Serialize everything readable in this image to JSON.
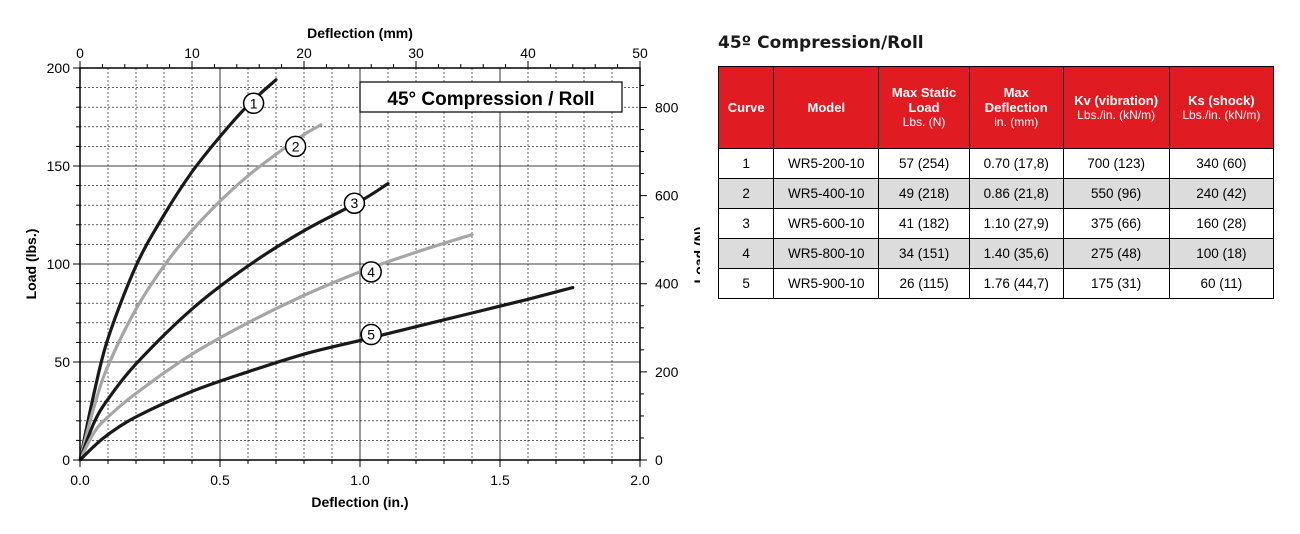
{
  "chart_data": {
    "type": "line",
    "title": "45° Compression / Roll",
    "xlabel": "Deflection (in.)",
    "ylabel": "Load (lbs.)",
    "x2label": "Deflection (mm)",
    "y2label": "Load (N)",
    "xlim": [
      0,
      2.0
    ],
    "ylim": [
      0,
      200
    ],
    "x2lim": [
      0,
      50
    ],
    "y2lim": [
      0,
      889.6
    ],
    "x_ticks": [
      "0.0",
      "0.5",
      "1.0",
      "1.5",
      "2.0"
    ],
    "y_ticks": [
      "0",
      "50",
      "100",
      "150",
      "200"
    ],
    "x2_ticks": [
      "0",
      "10",
      "20",
      "30",
      "40",
      "50"
    ],
    "y2_ticks": [
      "0",
      "200",
      "400",
      "600",
      "800"
    ],
    "grid": true,
    "series": [
      {
        "name": "1",
        "color": "#1a1a1a",
        "x": [
          0,
          0.05,
          0.1,
          0.2,
          0.3,
          0.4,
          0.5,
          0.6,
          0.7
        ],
        "y": [
          0,
          34,
          62,
          99,
          125,
          147,
          165,
          181,
          194
        ]
      },
      {
        "name": "2",
        "color": "#a6a6a6",
        "x": [
          0,
          0.05,
          0.1,
          0.2,
          0.3,
          0.4,
          0.5,
          0.6,
          0.7,
          0.8,
          0.86
        ],
        "y": [
          0,
          27,
          48,
          77,
          99,
          117,
          132,
          145,
          156,
          166,
          171
        ]
      },
      {
        "name": "3",
        "color": "#1a1a1a",
        "x": [
          0,
          0.05,
          0.1,
          0.2,
          0.4,
          0.6,
          0.8,
          1.0,
          1.1
        ],
        "y": [
          0,
          19,
          31,
          49,
          77,
          99,
          117,
          132,
          141
        ]
      },
      {
        "name": "4",
        "color": "#a6a6a6",
        "x": [
          0,
          0.05,
          0.1,
          0.2,
          0.4,
          0.6,
          0.8,
          1.0,
          1.2,
          1.4
        ],
        "y": [
          0,
          14,
          22,
          34,
          54,
          70,
          84,
          96,
          106,
          115
        ]
      },
      {
        "name": "5",
        "color": "#1a1a1a",
        "x": [
          0,
          0.05,
          0.1,
          0.2,
          0.4,
          0.6,
          0.8,
          1.0,
          1.2,
          1.4,
          1.6,
          1.76
        ],
        "y": [
          0,
          7,
          13,
          22,
          35,
          45,
          54,
          61,
          68,
          75,
          82,
          88
        ]
      }
    ],
    "curve_labels": [
      {
        "text": "1",
        "x": 0.62,
        "y": 182
      },
      {
        "text": "2",
        "x": 0.77,
        "y": 160
      },
      {
        "text": "3",
        "x": 0.98,
        "y": 131
      },
      {
        "text": "4",
        "x": 1.04,
        "y": 96
      },
      {
        "text": "5",
        "x": 1.04,
        "y": 64
      }
    ]
  },
  "table": {
    "title": "45º Compression/Roll",
    "headers": [
      {
        "label": "Curve",
        "unit": ""
      },
      {
        "label": "Model",
        "unit": ""
      },
      {
        "label": "Max Static Load",
        "unit": "Lbs. (N)"
      },
      {
        "label": "Max Deflection",
        "unit": "in. (mm)"
      },
      {
        "label": "Kv (vibration)",
        "unit": "Lbs./in. (kN/m)"
      },
      {
        "label": "Ks (shock)",
        "unit": "Lbs./in. (kN/m)"
      }
    ],
    "rows": [
      [
        "1",
        "WR5-200-10",
        "57 (254)",
        "0.70 (17,8)",
        "700 (123)",
        "340 (60)"
      ],
      [
        "2",
        "WR5-400-10",
        "49 (218)",
        "0.86 (21,8)",
        "550 (96)",
        "240 (42)"
      ],
      [
        "3",
        "WR5-600-10",
        "41 (182)",
        "1.10 (27,9)",
        "375 (66)",
        "160 (28)"
      ],
      [
        "4",
        "WR5-800-10",
        "34 (151)",
        "1.40 (35,6)",
        "275 (48)",
        "100 (18)"
      ],
      [
        "5",
        "WR5-900-10",
        "26 (115)",
        "1.76 (44,7)",
        "175 (31)",
        "60 (11)"
      ]
    ]
  }
}
